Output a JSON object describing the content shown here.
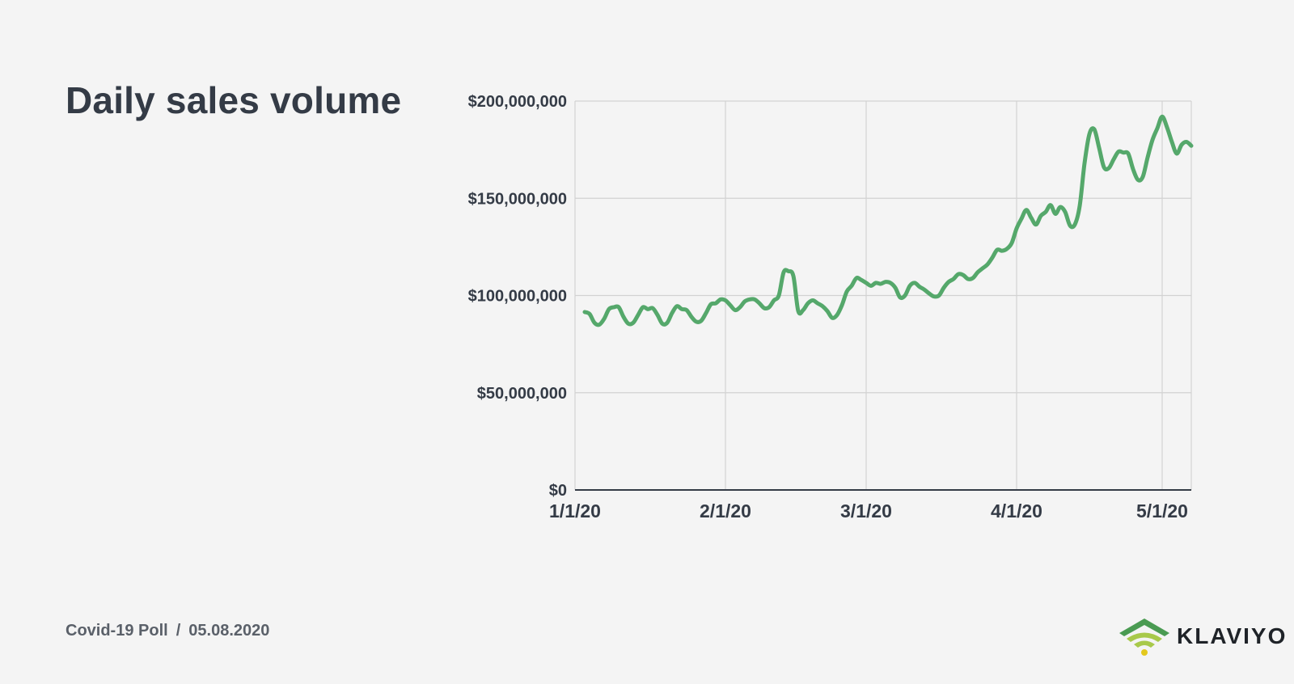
{
  "page": {
    "title": "Daily sales volume",
    "footer_poll": "Covid-19 Poll",
    "footer_separator": "/",
    "footer_date": "05.08.2020",
    "brand_name": "KLAVIYO",
    "brand_icon": "klaviyo-signal-logo"
  },
  "colors": {
    "line": "#55a86b",
    "grid": "#d2d2d2",
    "axis": "#343b46",
    "background": "#f4f4f4",
    "logo_green": "#4a9b52",
    "logo_light_green": "#a8c94a",
    "logo_yellow": "#e3c81e"
  },
  "chart_data": {
    "type": "line",
    "title": "Daily sales volume",
    "xlabel": "",
    "ylabel": "",
    "ylim": [
      0,
      200000000
    ],
    "yticks": [
      0,
      50000000,
      100000000,
      150000000,
      200000000
    ],
    "ytick_labels": [
      "$0",
      "$50,000,000",
      "$100,000,000",
      "$150,000,000",
      "$200,000,000"
    ],
    "xlim": [
      "2020-01-01",
      "2020-05-07"
    ],
    "xticks": [
      "2020-01-01",
      "2020-02-01",
      "2020-03-01",
      "2020-04-01",
      "2020-05-01"
    ],
    "xtick_labels": [
      "1/1/20",
      "2/1/20",
      "3/1/20",
      "4/1/20",
      "5/1/20"
    ],
    "grid": true,
    "legend": "none",
    "series": [
      {
        "points": [
          [
            "2020-01-03",
            91500000
          ],
          [
            "2020-01-04",
            90500000
          ],
          [
            "2020-01-05",
            86000000
          ],
          [
            "2020-01-06",
            85000000
          ],
          [
            "2020-01-07",
            88000000
          ],
          [
            "2020-01-08",
            93000000
          ],
          [
            "2020-01-09",
            94000000
          ],
          [
            "2020-01-10",
            94000000
          ],
          [
            "2020-01-11",
            89000000
          ],
          [
            "2020-01-12",
            85500000
          ],
          [
            "2020-01-13",
            86000000
          ],
          [
            "2020-01-14",
            90000000
          ],
          [
            "2020-01-15",
            94000000
          ],
          [
            "2020-01-16",
            93000000
          ],
          [
            "2020-01-17",
            93500000
          ],
          [
            "2020-01-18",
            90000000
          ],
          [
            "2020-01-19",
            85500000
          ],
          [
            "2020-01-20",
            86000000
          ],
          [
            "2020-01-21",
            91000000
          ],
          [
            "2020-01-22",
            94500000
          ],
          [
            "2020-01-23",
            93000000
          ],
          [
            "2020-01-24",
            92500000
          ],
          [
            "2020-01-25",
            89000000
          ],
          [
            "2020-01-26",
            86500000
          ],
          [
            "2020-01-27",
            87000000
          ],
          [
            "2020-01-28",
            91000000
          ],
          [
            "2020-01-29",
            95500000
          ],
          [
            "2020-01-30",
            96000000
          ],
          [
            "2020-01-31",
            98000000
          ],
          [
            "2020-02-01",
            97500000
          ],
          [
            "2020-02-02",
            95000000
          ],
          [
            "2020-02-03",
            92500000
          ],
          [
            "2020-02-04",
            94000000
          ],
          [
            "2020-02-05",
            97000000
          ],
          [
            "2020-02-06",
            98000000
          ],
          [
            "2020-02-07",
            98000000
          ],
          [
            "2020-02-08",
            96000000
          ],
          [
            "2020-02-09",
            93500000
          ],
          [
            "2020-02-10",
            94000000
          ],
          [
            "2020-02-11",
            97500000
          ],
          [
            "2020-02-12",
            100000000
          ],
          [
            "2020-02-13",
            112000000
          ],
          [
            "2020-02-14",
            112500000
          ],
          [
            "2020-02-15",
            110000000
          ],
          [
            "2020-02-16",
            92000000
          ],
          [
            "2020-02-17",
            92500000
          ],
          [
            "2020-02-18",
            96000000
          ],
          [
            "2020-02-19",
            97500000
          ],
          [
            "2020-02-20",
            96000000
          ],
          [
            "2020-02-21",
            94500000
          ],
          [
            "2020-02-22",
            92000000
          ],
          [
            "2020-02-23",
            88500000
          ],
          [
            "2020-02-24",
            90000000
          ],
          [
            "2020-02-25",
            95000000
          ],
          [
            "2020-02-26",
            102000000
          ],
          [
            "2020-02-27",
            105000000
          ],
          [
            "2020-02-28",
            109000000
          ],
          [
            "2020-02-29",
            108000000
          ],
          [
            "2020-03-01",
            106500000
          ],
          [
            "2020-03-02",
            105000000
          ],
          [
            "2020-03-03",
            106500000
          ],
          [
            "2020-03-04",
            106000000
          ],
          [
            "2020-03-05",
            107000000
          ],
          [
            "2020-03-06",
            106500000
          ],
          [
            "2020-03-07",
            104000000
          ],
          [
            "2020-03-08",
            99000000
          ],
          [
            "2020-03-09",
            100000000
          ],
          [
            "2020-03-10",
            105000000
          ],
          [
            "2020-03-11",
            106500000
          ],
          [
            "2020-03-12",
            104500000
          ],
          [
            "2020-03-13",
            103000000
          ],
          [
            "2020-03-14",
            101000000
          ],
          [
            "2020-03-15",
            99500000
          ],
          [
            "2020-03-16",
            100000000
          ],
          [
            "2020-03-17",
            104000000
          ],
          [
            "2020-03-18",
            107000000
          ],
          [
            "2020-03-19",
            108500000
          ],
          [
            "2020-03-20",
            111000000
          ],
          [
            "2020-03-21",
            110500000
          ],
          [
            "2020-03-22",
            108500000
          ],
          [
            "2020-03-23",
            109000000
          ],
          [
            "2020-03-24",
            112000000
          ],
          [
            "2020-03-25",
            114000000
          ],
          [
            "2020-03-26",
            116000000
          ],
          [
            "2020-03-27",
            119500000
          ],
          [
            "2020-03-28",
            123500000
          ],
          [
            "2020-03-29",
            123000000
          ],
          [
            "2020-03-30",
            124000000
          ],
          [
            "2020-03-31",
            127000000
          ],
          [
            "2020-04-01",
            134500000
          ],
          [
            "2020-04-02",
            139500000
          ],
          [
            "2020-04-03",
            144000000
          ],
          [
            "2020-04-04",
            140000000
          ],
          [
            "2020-04-05",
            136500000
          ],
          [
            "2020-04-06",
            141000000
          ],
          [
            "2020-04-07",
            143000000
          ],
          [
            "2020-04-08",
            146500000
          ],
          [
            "2020-04-09",
            142000000
          ],
          [
            "2020-04-10",
            145500000
          ],
          [
            "2020-04-11",
            143000000
          ],
          [
            "2020-04-12",
            136000000
          ],
          [
            "2020-04-13",
            136500000
          ],
          [
            "2020-04-14",
            146000000
          ],
          [
            "2020-04-15",
            168000000
          ],
          [
            "2020-04-16",
            183000000
          ],
          [
            "2020-04-17",
            185500000
          ],
          [
            "2020-04-18",
            176000000
          ],
          [
            "2020-04-19",
            166000000
          ],
          [
            "2020-04-20",
            165500000
          ],
          [
            "2020-04-21",
            170000000
          ],
          [
            "2020-04-22",
            174000000
          ],
          [
            "2020-04-23",
            173500000
          ],
          [
            "2020-04-24",
            173000000
          ],
          [
            "2020-04-25",
            165000000
          ],
          [
            "2020-04-26",
            159500000
          ],
          [
            "2020-04-27",
            161000000
          ],
          [
            "2020-04-28",
            171000000
          ],
          [
            "2020-04-29",
            180000000
          ],
          [
            "2020-04-30",
            186000000
          ],
          [
            "2020-05-01",
            192000000
          ],
          [
            "2020-05-02",
            186500000
          ],
          [
            "2020-05-03",
            179000000
          ],
          [
            "2020-05-04",
            173000000
          ],
          [
            "2020-05-05",
            177500000
          ],
          [
            "2020-05-06",
            179000000
          ],
          [
            "2020-05-07",
            177000000
          ]
        ]
      }
    ]
  }
}
